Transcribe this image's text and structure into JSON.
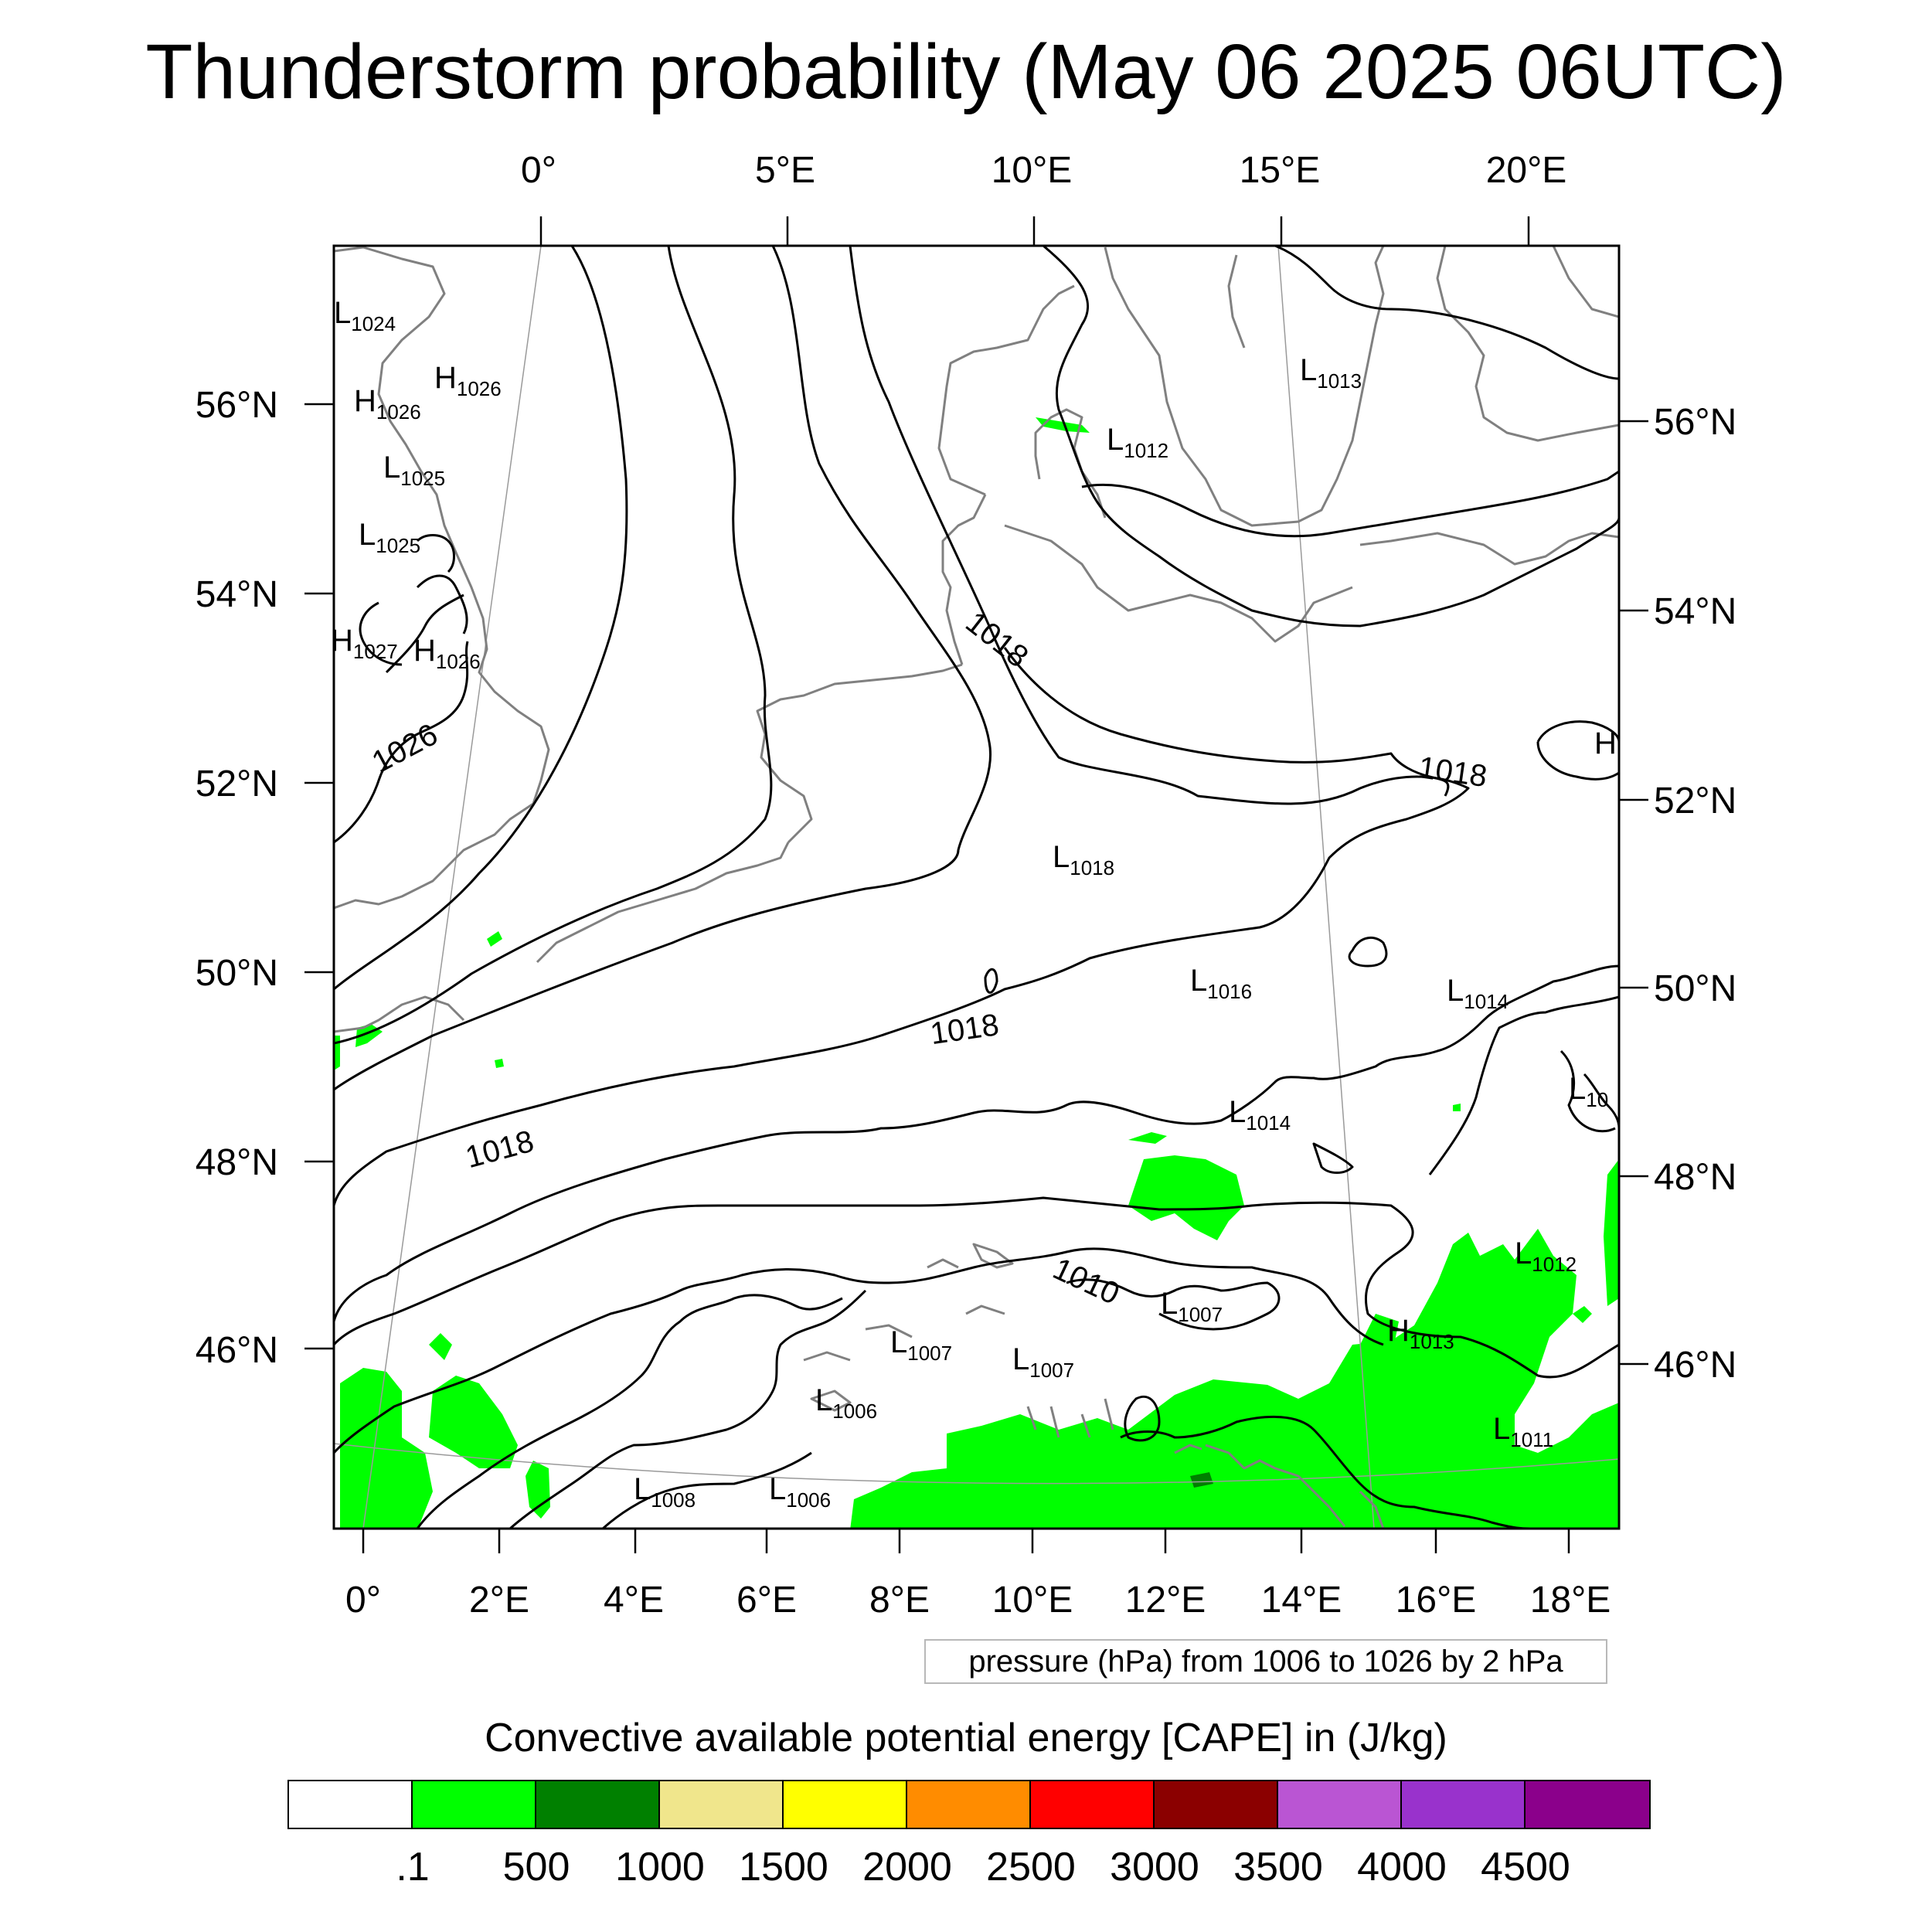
{
  "title": "Thunderstorm probability (May 06 2025 06UTC)",
  "map": {
    "top_lon_labels": [
      "0°",
      "5°E",
      "10°E",
      "15°E",
      "20°E"
    ],
    "bottom_lon_labels": [
      "0°",
      "2°E",
      "4°E",
      "6°E",
      "8°E",
      "10°E",
      "12°E",
      "14°E",
      "16°E",
      "18°E"
    ],
    "left_lat_labels": [
      "56°N",
      "54°N",
      "52°N",
      "50°N",
      "48°N",
      "46°N"
    ],
    "right_lat_labels": [
      "56°N",
      "54°N",
      "52°N",
      "50°N",
      "48°N",
      "46°N"
    ],
    "contour_labels": [
      "1026",
      "1018",
      "1018",
      "1018",
      "1018",
      "1010"
    ],
    "pressure_centers": [
      {
        "type": "L",
        "value": "1024"
      },
      {
        "type": "H",
        "value": "1026"
      },
      {
        "type": "H",
        "value": "1026"
      },
      {
        "type": "L",
        "value": "1025"
      },
      {
        "type": "L",
        "value": "1025"
      },
      {
        "type": "H",
        "value": "1027"
      },
      {
        "type": "H",
        "value": "1026"
      },
      {
        "type": "L",
        "value": "1013"
      },
      {
        "type": "L",
        "value": "1012"
      },
      {
        "type": "L",
        "value": "1018"
      },
      {
        "type": "L",
        "value": "1016"
      },
      {
        "type": "L",
        "value": "1014"
      },
      {
        "type": "L",
        "value": "1014"
      },
      {
        "type": "L",
        "value": "10"
      },
      {
        "type": "L",
        "value": "1012"
      },
      {
        "type": "L",
        "value": "1007"
      },
      {
        "type": "H",
        "value": "1013"
      },
      {
        "type": "L",
        "value": "1007"
      },
      {
        "type": "L",
        "value": "1007"
      },
      {
        "type": "L",
        "value": "1006"
      },
      {
        "type": "L",
        "value": "1011"
      },
      {
        "type": "L",
        "value": "1008"
      },
      {
        "type": "L",
        "value": "1006"
      },
      {
        "type": "H",
        "value": ""
      }
    ],
    "colors": {
      "cape_fill": "#00ff00",
      "cape_dark": "#008000",
      "coastline": "#808080",
      "isobar": "#000000"
    }
  },
  "contour_info": "pressure (hPa) from 1006 to 1026 by 2 hPa",
  "colorbar": {
    "title": "Convective available potential energy [CAPE] in (J/kg)",
    "colors": [
      "#ffffff",
      "#00ff00",
      "#008000",
      "#f0e68c",
      "#ffff00",
      "#ff8c00",
      "#ff0000",
      "#8b0000",
      "#ba55d3",
      "#9932cc",
      "#8b008b"
    ],
    "tick_labels": [
      ".1",
      "500",
      "1000",
      "1500",
      "2000",
      "2500",
      "3000",
      "3500",
      "4000",
      "4500"
    ]
  }
}
